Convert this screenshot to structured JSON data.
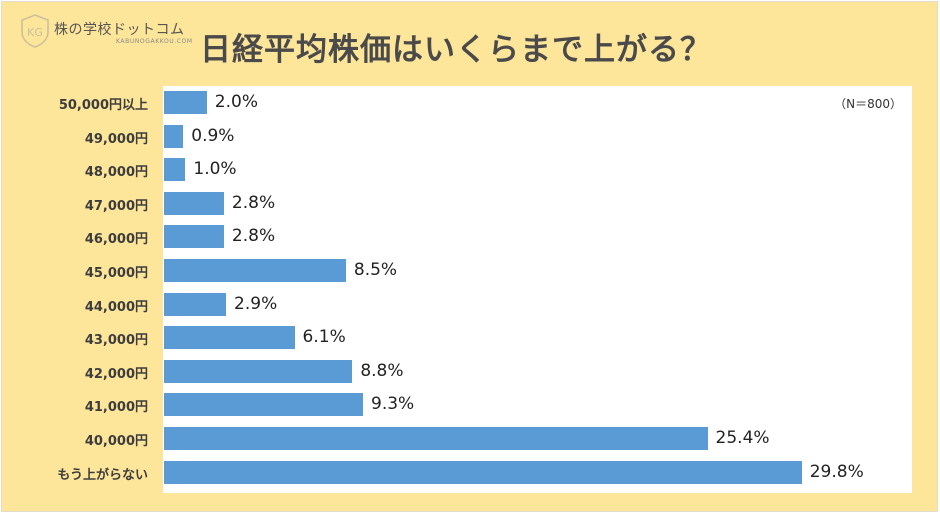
{
  "header": {
    "logo_text": "株の学校ドットコム",
    "logo_subtext": "KABUNOGAKKOU.COM",
    "logo_mark": "KG",
    "title": "日経平均株価はいくらまで上がる？"
  },
  "note": "（N＝800）",
  "colors": {
    "background": "#fde59a",
    "panel": "#ffffff",
    "bar": "#5b9bd5",
    "title": "#4a4a4a"
  },
  "chart_data": {
    "type": "bar",
    "orientation": "horizontal",
    "title": "日経平均株価はいくらまで上がる？",
    "annotation": "（N＝800）",
    "xlabel": "",
    "ylabel": "",
    "grid": false,
    "legend": null,
    "unit": "%",
    "categories": [
      "50,000円以上",
      "49,000円",
      "48,000円",
      "47,000円",
      "46,000円",
      "45,000円",
      "44,000円",
      "43,000円",
      "42,000円",
      "41,000円",
      "40,000円",
      "もう上がらない"
    ],
    "values": [
      2.0,
      0.9,
      1.0,
      2.8,
      2.8,
      8.5,
      2.9,
      6.1,
      8.8,
      9.3,
      25.4,
      29.8
    ],
    "value_labels": [
      "2.0%",
      "0.9%",
      "1.0%",
      "2.8%",
      "2.8%",
      "8.5%",
      "2.9%",
      "6.1%",
      "8.8%",
      "9.3%",
      "25.4%",
      "29.8%"
    ]
  }
}
